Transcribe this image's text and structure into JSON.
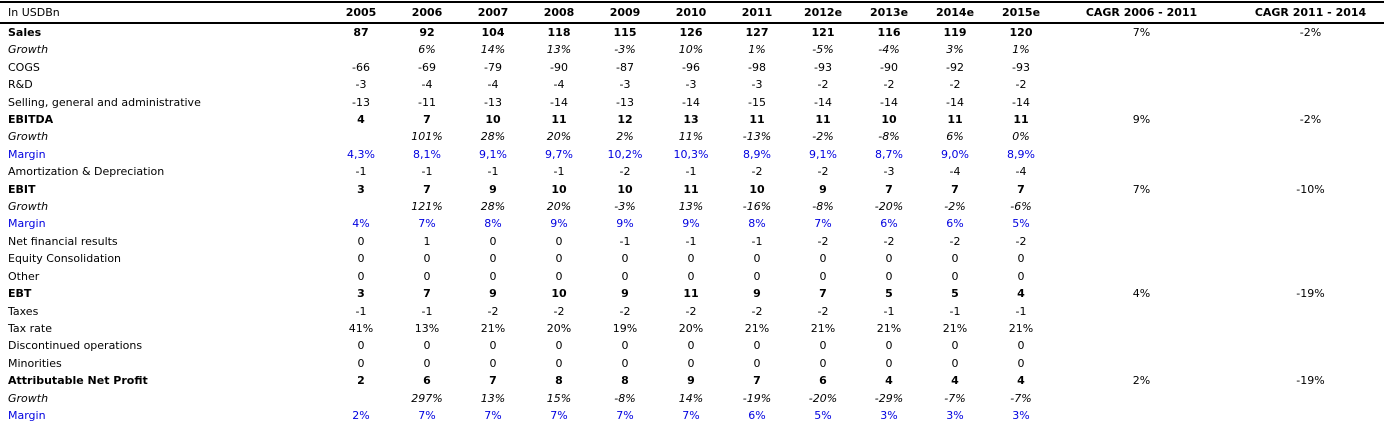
{
  "colors": {
    "margin_blue": "#0000E0",
    "text": "#000000",
    "rule": "#000000"
  },
  "chart_data": {
    "type": "table",
    "title": "",
    "unit_label": "In USDBn",
    "year_columns": [
      "2005",
      "2006",
      "2007",
      "2008",
      "2009",
      "2010",
      "2011",
      "2012e",
      "2013e",
      "2014e",
      "2015e"
    ],
    "cagr_columns": [
      "CAGR 2006 - 2011",
      "CAGR 2011 - 2014"
    ],
    "rows": [
      {
        "label": "Sales",
        "style": "bold",
        "values": [
          "87",
          "92",
          "104",
          "118",
          "115",
          "126",
          "127",
          "121",
          "116",
          "119",
          "120"
        ],
        "cagr1": "7%",
        "cagr2": "-2%"
      },
      {
        "label": "Growth",
        "style": "italic",
        "values": [
          "",
          "6%",
          "14%",
          "13%",
          "-3%",
          "10%",
          "1%",
          "-5%",
          "-4%",
          "3%",
          "1%"
        ]
      },
      {
        "label": "COGS",
        "style": "normal",
        "values": [
          "-66",
          "-69",
          "-79",
          "-90",
          "-87",
          "-96",
          "-98",
          "-93",
          "-90",
          "-92",
          "-93"
        ]
      },
      {
        "label": "R&D",
        "style": "normal",
        "values": [
          "-3",
          "-4",
          "-4",
          "-4",
          "-3",
          "-3",
          "-3",
          "-2",
          "-2",
          "-2",
          "-2"
        ]
      },
      {
        "label": "Selling, general and administrative",
        "style": "normal",
        "values": [
          "-13",
          "-11",
          "-13",
          "-14",
          "-13",
          "-14",
          "-15",
          "-14",
          "-14",
          "-14",
          "-14"
        ]
      },
      {
        "label": "EBITDA",
        "style": "bold",
        "values": [
          "4",
          "7",
          "10",
          "11",
          "12",
          "13",
          "11",
          "11",
          "10",
          "11",
          "11"
        ],
        "cagr1": "9%",
        "cagr2": "-2%"
      },
      {
        "label": "Growth",
        "style": "italic",
        "values": [
          "",
          "101%",
          "28%",
          "20%",
          "2%",
          "11%",
          "-13%",
          "-2%",
          "-8%",
          "6%",
          "0%"
        ]
      },
      {
        "label": "Margin",
        "style": "blue",
        "values": [
          "4,3%",
          "8,1%",
          "9,1%",
          "9,7%",
          "10,2%",
          "10,3%",
          "8,9%",
          "9,1%",
          "8,7%",
          "9,0%",
          "8,9%"
        ]
      },
      {
        "label": "Amortization & Depreciation",
        "style": "normal",
        "values": [
          "-1",
          "-1",
          "-1",
          "-1",
          "-2",
          "-1",
          "-2",
          "-2",
          "-3",
          "-4",
          "-4"
        ]
      },
      {
        "label": "EBIT",
        "style": "bold",
        "values": [
          "3",
          "7",
          "9",
          "10",
          "10",
          "11",
          "10",
          "9",
          "7",
          "7",
          "7"
        ],
        "cagr1": "7%",
        "cagr2": "-10%"
      },
      {
        "label": "Growth",
        "style": "italic",
        "values": [
          "",
          "121%",
          "28%",
          "20%",
          "-3%",
          "13%",
          "-16%",
          "-8%",
          "-20%",
          "-2%",
          "-6%"
        ]
      },
      {
        "label": "Margin",
        "style": "blue",
        "values": [
          "4%",
          "7%",
          "8%",
          "9%",
          "9%",
          "9%",
          "8%",
          "7%",
          "6%",
          "6%",
          "5%"
        ]
      },
      {
        "label": "Net financial results",
        "style": "normal",
        "values": [
          "0",
          "1",
          "0",
          "0",
          "-1",
          "-1",
          "-1",
          "-2",
          "-2",
          "-2",
          "-2"
        ]
      },
      {
        "label": "Equity Consolidation",
        "style": "normal",
        "values": [
          "0",
          "0",
          "0",
          "0",
          "0",
          "0",
          "0",
          "0",
          "0",
          "0",
          "0"
        ]
      },
      {
        "label": "Other",
        "style": "normal",
        "values": [
          "0",
          "0",
          "0",
          "0",
          "0",
          "0",
          "0",
          "0",
          "0",
          "0",
          "0"
        ]
      },
      {
        "label": "EBT",
        "style": "bold",
        "values": [
          "3",
          "7",
          "9",
          "10",
          "9",
          "11",
          "9",
          "7",
          "5",
          "5",
          "4"
        ],
        "cagr1": "4%",
        "cagr2": "-19%"
      },
      {
        "label": "Taxes",
        "style": "normal",
        "values": [
          "-1",
          "-1",
          "-2",
          "-2",
          "-2",
          "-2",
          "-2",
          "-2",
          "-1",
          "-1",
          "-1"
        ]
      },
      {
        "label": "Tax rate",
        "style": "normal",
        "values": [
          "41%",
          "13%",
          "21%",
          "20%",
          "19%",
          "20%",
          "21%",
          "21%",
          "21%",
          "21%",
          "21%"
        ]
      },
      {
        "label": "Discontinued operations",
        "style": "normal",
        "values": [
          "0",
          "0",
          "0",
          "0",
          "0",
          "0",
          "0",
          "0",
          "0",
          "0",
          "0"
        ]
      },
      {
        "label": "Minorities",
        "style": "normal",
        "values": [
          "0",
          "0",
          "0",
          "0",
          "0",
          "0",
          "0",
          "0",
          "0",
          "0",
          "0"
        ]
      },
      {
        "label": "Attributable Net Profit",
        "style": "bold",
        "values": [
          "2",
          "6",
          "7",
          "8",
          "8",
          "9",
          "7",
          "6",
          "4",
          "4",
          "4"
        ],
        "cagr1": "2%",
        "cagr2": "-19%"
      },
      {
        "label": "Growth",
        "style": "italic",
        "values": [
          "",
          "297%",
          "13%",
          "15%",
          "-8%",
          "14%",
          "-19%",
          "-20%",
          "-29%",
          "-7%",
          "-7%"
        ]
      },
      {
        "label": "Margin",
        "style": "blue",
        "values": [
          "2%",
          "7%",
          "7%",
          "7%",
          "7%",
          "7%",
          "6%",
          "5%",
          "3%",
          "3%",
          "3%"
        ]
      }
    ]
  }
}
